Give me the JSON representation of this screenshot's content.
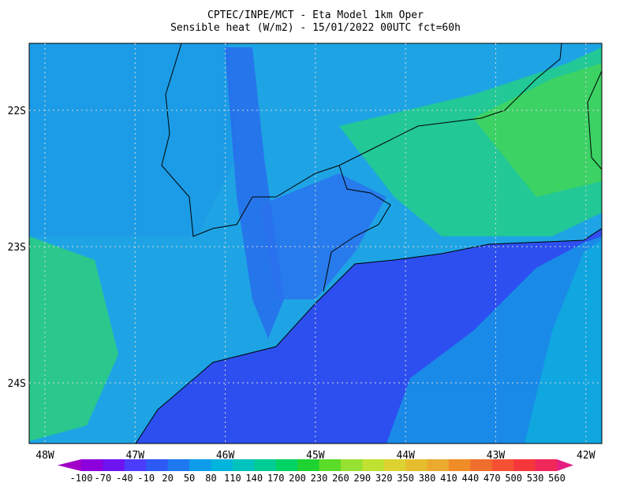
{
  "header": {
    "line1": "CPTEC/INPE/MCT -  Eta Model 1km Oper",
    "line2": "Sensible heat (W/m2) - 15/01/2022 00UTC fct=60h"
  },
  "lat_labels": [
    "22S",
    "23S",
    "24S"
  ],
  "lon_labels": [
    "48W",
    "47W",
    "46W",
    "45W",
    "44W",
    "43W",
    "42W"
  ],
  "colorbar": {
    "labels": [
      "-100",
      "-70",
      "-40",
      "-10",
      "20",
      "50",
      "80",
      "110",
      "140",
      "170",
      "200",
      "230",
      "260",
      "290",
      "320",
      "350",
      "380",
      "410",
      "440",
      "470",
      "500",
      "530",
      "560"
    ],
    "colors": [
      "#a000c8",
      "#8c00dc",
      "#6e14f0",
      "#4b3cff",
      "#2d5af5",
      "#1e78f0",
      "#0f9ceb",
      "#00b4dc",
      "#00c3be",
      "#00cd96",
      "#00d264",
      "#1ed232",
      "#5adc28",
      "#96e132",
      "#bee132",
      "#dcd232",
      "#e6be2d",
      "#ebaa2d",
      "#f08c28",
      "#f06e2d",
      "#f55032",
      "#f5373c",
      "#f0285a",
      "#e61e82"
    ]
  }
}
